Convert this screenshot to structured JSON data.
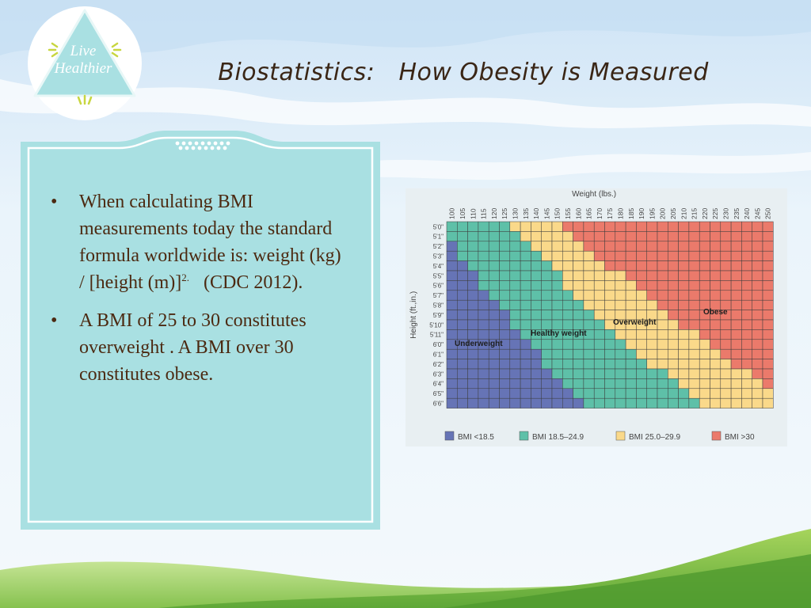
{
  "slide": {
    "title": "Biostatistics:   How Obesity is Measured",
    "logo": {
      "line1": "Live",
      "line2": "Healthier"
    },
    "bullets": [
      {
        "text": "When calculating BMI measurements today the standard formula worldwide is: weight (kg) / [height (m)]",
        "sup": "2.",
        "tail": "   (CDC 2012)."
      },
      {
        "text": "A BMI of 25 to 30 constitutes overweight .  A BMI over 30 constitutes obese.",
        "sup": "",
        "tail": ""
      }
    ],
    "colors": {
      "panel": "#a9e0e2",
      "title": "#3a2616",
      "text": "#4c2a12",
      "grass": "#7fc04a"
    }
  },
  "chart_data": {
    "type": "heatmap",
    "title": "",
    "xlabel": "Weight (lbs.)",
    "ylabel": "Height (ft.,in.)",
    "x": [
      100,
      105,
      110,
      115,
      120,
      125,
      130,
      135,
      140,
      145,
      150,
      155,
      160,
      165,
      170,
      175,
      180,
      185,
      190,
      195,
      200,
      205,
      210,
      215,
      220,
      225,
      230,
      235,
      240,
      245,
      250
    ],
    "y": [
      "5'0\"",
      "5'1\"",
      "5'2\"",
      "5'3\"",
      "5'4\"",
      "5'5\"",
      "5'6\"",
      "5'7\"",
      "5'8\"",
      "5'9\"",
      "5'10\"",
      "5'11\"",
      "6'0\"",
      "6'1\"",
      "6'2\"",
      "6'3\"",
      "6'4\"",
      "6'5\"",
      "6'6\""
    ],
    "zones": [
      "Underweight",
      "Healthy weight",
      "Overweight",
      "Obese"
    ],
    "legend": [
      {
        "label": "BMI <18.5",
        "color": "#6674b6"
      },
      {
        "label": "BMI 18.5–24.9",
        "color": "#5ec0a8"
      },
      {
        "label": "BMI 25.0–29.9",
        "color": "#fad98a"
      },
      {
        "label": "BMI >30",
        "color": "#eb7a6b"
      }
    ],
    "legend_position": "bottom",
    "grid": true
  }
}
